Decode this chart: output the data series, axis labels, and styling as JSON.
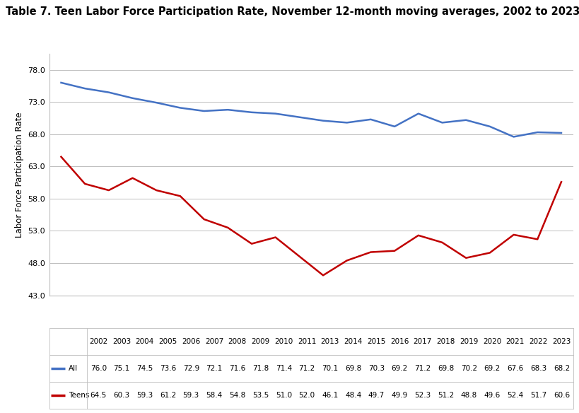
{
  "title": "Table 7. Teen Labor Force Participation Rate, November 12-month moving averages, 2002 to 2023",
  "ylabel": "Labor Force Participation Rate",
  "years": [
    2002,
    2003,
    2004,
    2005,
    2006,
    2007,
    2008,
    2009,
    2010,
    2011,
    2013,
    2014,
    2015,
    2016,
    2017,
    2018,
    2019,
    2020,
    2021,
    2022,
    2023
  ],
  "all_values": [
    76.0,
    75.1,
    74.5,
    73.6,
    72.9,
    72.1,
    71.6,
    71.8,
    71.4,
    71.2,
    70.1,
    69.8,
    70.3,
    69.2,
    71.2,
    69.8,
    70.2,
    69.2,
    67.6,
    68.3,
    68.2
  ],
  "teen_values": [
    64.5,
    60.3,
    59.3,
    61.2,
    59.3,
    58.4,
    54.8,
    53.5,
    51.0,
    52.0,
    46.1,
    48.4,
    49.7,
    49.9,
    52.3,
    51.2,
    48.8,
    49.6,
    52.4,
    51.7,
    60.6
  ],
  "all_color": "#4472C4",
  "teen_color": "#C00000",
  "ylim_min": 43.0,
  "ylim_max": 80.5,
  "yticks": [
    43.0,
    48.0,
    53.0,
    58.0,
    63.0,
    68.0,
    73.0,
    78.0
  ],
  "bg_color": "#FFFFFF",
  "plot_bg_color": "#FFFFFF",
  "grid_color": "#BFBFBF",
  "title_fontsize": 10.5,
  "axis_label_fontsize": 8.5,
  "tick_fontsize": 8,
  "table_fontsize": 7.5,
  "line_width": 1.8
}
